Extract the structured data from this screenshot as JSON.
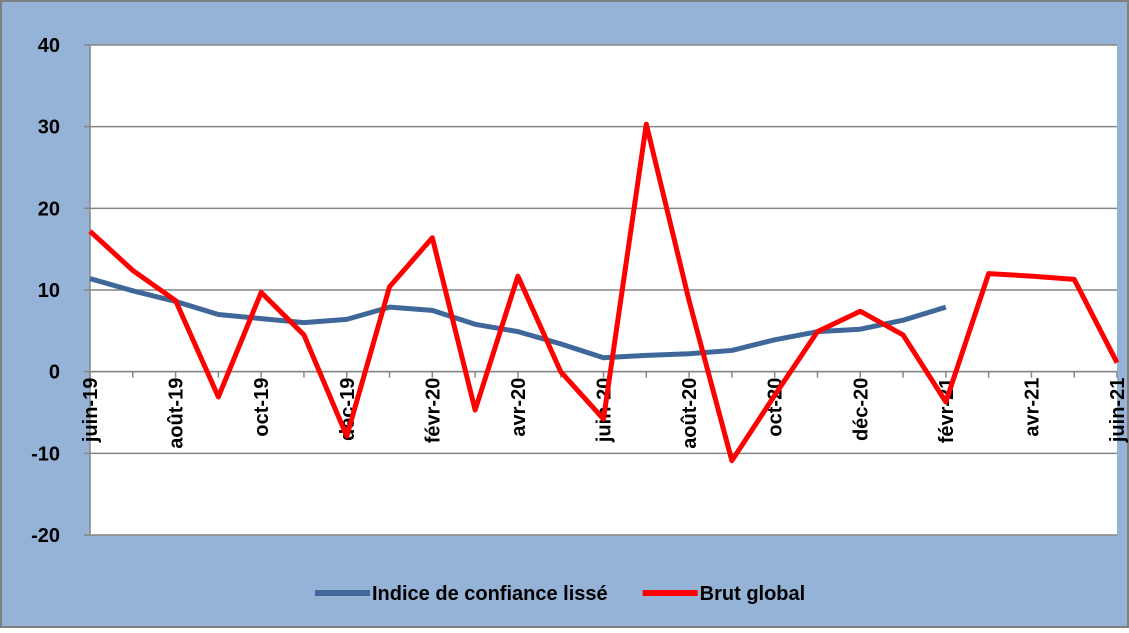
{
  "chart_data": {
    "type": "line",
    "categories": [
      "juin-19",
      null,
      "août-19",
      null,
      "oct-19",
      null,
      "déc-19",
      null,
      "févr-20",
      null,
      "avr-20",
      null,
      "juin-20",
      null,
      "août-20",
      null,
      "oct-20",
      null,
      "déc-20",
      null,
      "févr-21",
      null,
      "avr-21",
      null,
      "juin-21"
    ],
    "series": [
      {
        "name": "Indice de confiance lissé",
        "color": "#3f679a",
        "values": [
          11.4,
          9.9,
          8.6,
          7.0,
          6.5,
          6.0,
          6.4,
          7.9,
          7.5,
          5.8,
          4.9,
          3.4,
          1.7,
          2.0,
          2.2,
          2.6,
          3.9,
          4.9,
          5.2,
          6.3,
          7.9,
          null,
          null,
          null,
          null
        ]
      },
      {
        "name": "Brut global",
        "color": "#ff0000",
        "values": [
          17.2,
          12.4,
          8.7,
          -3.1,
          9.7,
          4.5,
          -7.9,
          10.4,
          16.4,
          -4.7,
          11.7,
          0,
          -5.8,
          30.3,
          8.7,
          -10.9,
          -2.9,
          4.9,
          7.4,
          4.5,
          -3.7,
          12.0,
          11.7,
          11.3,
          1.1
        ]
      }
    ],
    "ylim": [
      -20,
      40
    ],
    "yticks": [
      -20,
      -10,
      0,
      10,
      20,
      30,
      40
    ],
    "grid": true,
    "legend": "bottom"
  }
}
